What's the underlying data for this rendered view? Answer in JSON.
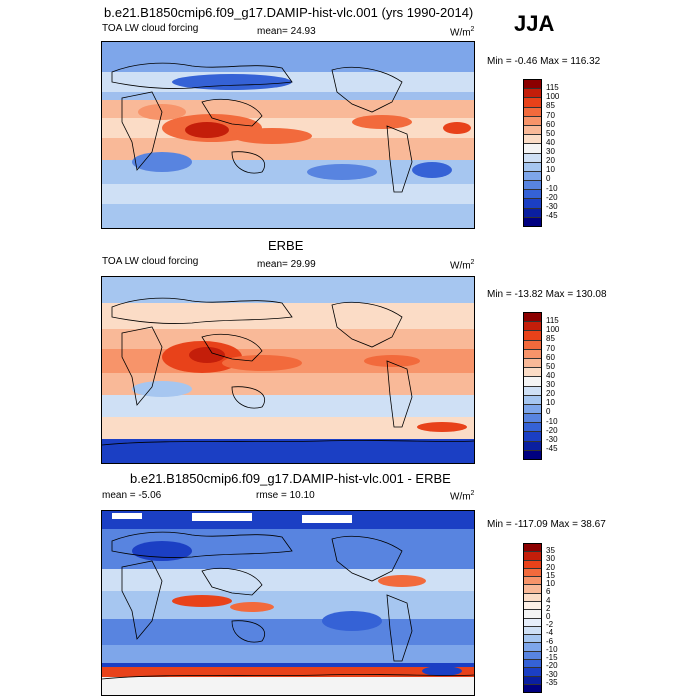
{
  "header": {
    "main_title": "b.e21.B1850cmip6.f09_g17.DAMIP-hist-vlc.001 (yrs 1990-2014)",
    "season": "JJA"
  },
  "panels": [
    {
      "title": "",
      "left_label": "TOA LW cloud forcing",
      "stat_label": "mean=  24.93",
      "units": "W/m",
      "units_sup": "2",
      "minmax": "Min =  -0.46 Max = 116.32",
      "colorbar_labels": [
        "115",
        "100",
        "85",
        "70",
        "60",
        "50",
        "40",
        "30",
        "20",
        "10",
        "0",
        "-10",
        "-20",
        "-30",
        "-45"
      ]
    },
    {
      "title": "ERBE",
      "left_label": "TOA LW cloud forcing",
      "stat_label": "mean=  29.99",
      "units": "W/m",
      "units_sup": "2",
      "minmax": "Min = -13.82 Max = 130.08",
      "colorbar_labels": [
        "115",
        "100",
        "85",
        "70",
        "60",
        "50",
        "40",
        "30",
        "20",
        "10",
        "0",
        "-10",
        "-20",
        "-30",
        "-45"
      ]
    },
    {
      "title": "b.e21.B1850cmip6.f09_g17.DAMIP-hist-vlc.001 - ERBE",
      "left_label": "mean =  -5.06",
      "stat_label": "rmse =  10.10",
      "units": "W/m",
      "units_sup": "2",
      "minmax": "Min = -117.09 Max =  38.67",
      "colorbar_labels": [
        "35",
        "30",
        "20",
        "15",
        "10",
        "6",
        "4",
        "2",
        "0",
        "-2",
        "-4",
        "-6",
        "-10",
        "-15",
        "-20",
        "-30",
        "-35"
      ]
    }
  ],
  "colors": {
    "abs_scale": [
      "#8b0000",
      "#c41e0a",
      "#e8421a",
      "#f26a3c",
      "#f7946a",
      "#f9b998",
      "#fbdcc6",
      "#f4f4f4",
      "#cfe0f5",
      "#a6c6f0",
      "#7ea6ea",
      "#5884e0",
      "#3562d6",
      "#1b3fc4",
      "#0a1fa0",
      "#000080"
    ],
    "diff_scale": [
      "#8b0000",
      "#c41e0a",
      "#e8421a",
      "#f26a3c",
      "#f7946a",
      "#f9b998",
      "#fbdcc6",
      "#fdf0e6",
      "#f4f4f4",
      "#e6eefa",
      "#cfe0f5",
      "#a6c6f0",
      "#7ea6ea",
      "#5884e0",
      "#3562d6",
      "#1b3fc4",
      "#0a1fa0",
      "#000080"
    ]
  }
}
